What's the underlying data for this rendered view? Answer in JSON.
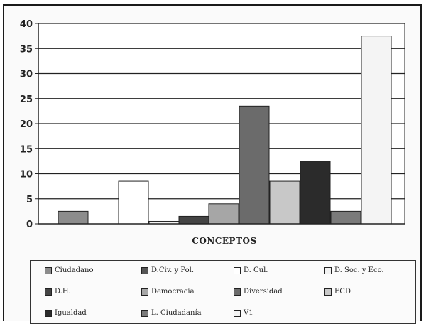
{
  "chart_data": {
    "type": "bar",
    "title": "",
    "xlabel": "CONCEPTOS",
    "ylabel": "",
    "ylim": [
      0,
      40
    ],
    "yticks": [
      0,
      5,
      10,
      15,
      20,
      25,
      30,
      35,
      40
    ],
    "grid": true,
    "legend_position": "bottom",
    "series": [
      {
        "name": "Ciudadano",
        "value": 2.5,
        "color": "#8c8c8c"
      },
      {
        "name": "D.Civ. y Pol.",
        "value": 0,
        "color": "#555555"
      },
      {
        "name": "D. Cul.",
        "value": 8.5,
        "color": "#ffffff"
      },
      {
        "name": "D. Soc. y Eco.",
        "value": 0.5,
        "color": "#f2f2f2"
      },
      {
        "name": "D.H.",
        "value": 1.5,
        "color": "#444444"
      },
      {
        "name": "Democracia",
        "value": 4,
        "color": "#a6a6a6"
      },
      {
        "name": "Diversidad",
        "value": 23.5,
        "color": "#6b6b6b"
      },
      {
        "name": "ECD",
        "value": 8.5,
        "color": "#c8c8c8"
      },
      {
        "name": "Igualdad",
        "value": 12.5,
        "color": "#2b2b2b"
      },
      {
        "name": "L. Ciudadanía",
        "value": 2.5,
        "color": "#7a7a7a"
      },
      {
        "name": "V1",
        "value": 37.5,
        "color": "#f4f4f4"
      }
    ]
  }
}
